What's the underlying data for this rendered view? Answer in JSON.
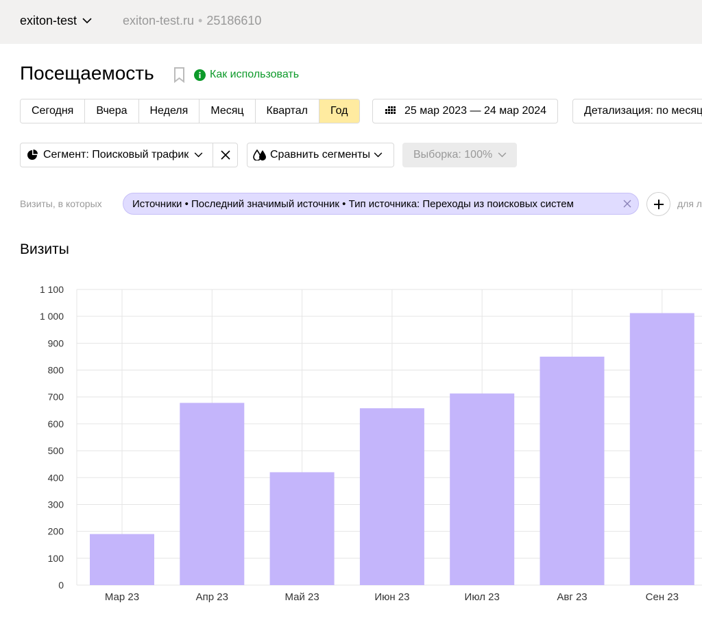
{
  "topbar": {
    "counter_name": "exiton-test",
    "site": "exiton-test.ru",
    "separator": "•",
    "counter_id": "25186610"
  },
  "page": {
    "title": "Посещаемость",
    "howto_label": "Как использовать"
  },
  "periods": [
    {
      "label": "Сегодня",
      "active": false
    },
    {
      "label": "Вчера",
      "active": false
    },
    {
      "label": "Неделя",
      "active": false
    },
    {
      "label": "Месяц",
      "active": false
    },
    {
      "label": "Квартал",
      "active": false
    },
    {
      "label": "Год",
      "active": true
    }
  ],
  "date_range": "25 мар 2023 — 24 мар 2024",
  "detail_label": "Детализация: по месяцам",
  "segment": {
    "label": "Сегмент: Поисковый трафик",
    "compare_label": "Сравнить сегменты",
    "sample_label": "Выборка: 100%"
  },
  "filter": {
    "prefix": "Визиты, в которых",
    "chip": "Источники • Последний значимый источник • Тип источника: Переходы из поисковых систем",
    "suffix": "для л"
  },
  "colors": {
    "accent_green": "#0d9a2a",
    "active_period": "#ffeba0",
    "bar_fill": "#c4b5fb",
    "chip_bg": "#e0dcff"
  },
  "chart_data": {
    "type": "bar",
    "title": "Визиты",
    "categories": [
      "Мар 23",
      "Апр 23",
      "Май 23",
      "Июн 23",
      "Июл 23",
      "Авг 23",
      "Сен 23"
    ],
    "values": [
      190,
      678,
      420,
      658,
      713,
      850,
      1012
    ],
    "yticks": [
      "0",
      "100",
      "200",
      "300",
      "400",
      "500",
      "600",
      "700",
      "800",
      "900",
      "1 000",
      "1 100"
    ],
    "ylim": [
      0,
      1100
    ],
    "grid": true
  }
}
